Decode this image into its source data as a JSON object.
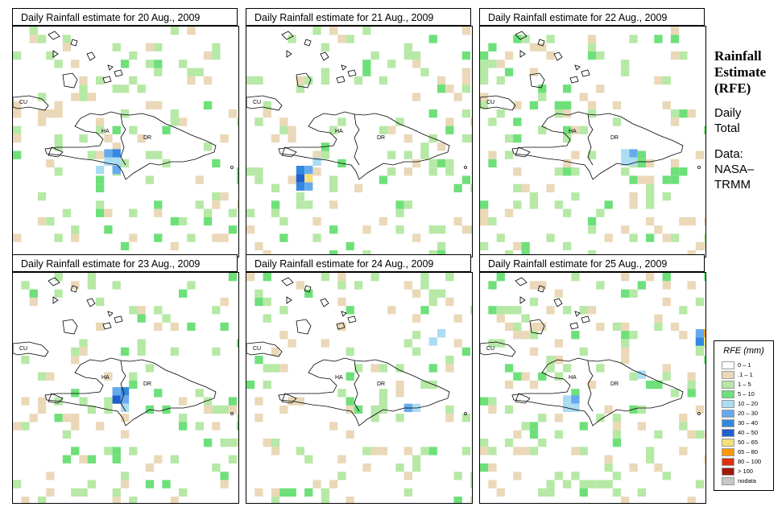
{
  "panels": [
    {
      "title": "Daily Rainfall estimate for  20 Aug., 2009",
      "seed": 11,
      "heavy": [
        [
          8,
          11,
          "#66aaee"
        ],
        [
          8,
          12,
          "#3388e0"
        ],
        [
          9,
          11,
          "#aadcf2"
        ],
        [
          9,
          12,
          "#aadcf2"
        ],
        [
          10,
          10,
          "#aadcf2"
        ],
        [
          10,
          12,
          "#66aaee"
        ]
      ]
    },
    {
      "title": "Daily Rainfall estimate for  21 Aug., 2009",
      "seed": 23,
      "heavy": [
        [
          10,
          6,
          "#3388e0"
        ],
        [
          10,
          7,
          "#66aaee"
        ],
        [
          11,
          6,
          "#1f5fd0"
        ],
        [
          11,
          7,
          "#f5e07a"
        ],
        [
          12,
          6,
          "#3388e0"
        ],
        [
          12,
          7,
          "#66aaee"
        ],
        [
          9,
          8,
          "#aadcf2"
        ]
      ]
    },
    {
      "title": "Daily Rainfall estimate for  22 Aug., 2009",
      "seed": 37,
      "heavy": [
        [
          8,
          17,
          "#aadcf2"
        ],
        [
          8,
          18,
          "#66aaee"
        ],
        [
          9,
          17,
          "#aadcf2"
        ],
        [
          9,
          18,
          "#aadcf2"
        ]
      ]
    },
    {
      "title": "Daily Rainfall estimate for  23 Aug., 2009",
      "seed": 41,
      "heavy": [
        [
          7,
          12,
          "#66aaee"
        ],
        [
          7,
          13,
          "#3388e0"
        ],
        [
          8,
          12,
          "#1f5fd0"
        ],
        [
          8,
          13,
          "#66aaee"
        ],
        [
          9,
          13,
          "#aadcf2"
        ]
      ]
    },
    {
      "title": "Daily Rainfall estimate for  24 Aug., 2009",
      "seed": 53,
      "heavy": [
        [
          0,
          23,
          "#aadcf2"
        ],
        [
          1,
          22,
          "#aadcf2"
        ],
        [
          9,
          19,
          "#66aaee"
        ],
        [
          9,
          20,
          "#aadcf2"
        ]
      ]
    },
    {
      "title": "Daily Rainfall estimate for  25 Aug., 2009",
      "seed": 67,
      "heavy": [
        [
          0,
          26,
          "#66aaee"
        ],
        [
          0,
          27,
          "#ff9900"
        ],
        [
          1,
          26,
          "#3388e0"
        ],
        [
          1,
          27,
          "#f5e07a"
        ],
        [
          5,
          19,
          "#aadcf2"
        ],
        [
          8,
          10,
          "#aadcf2"
        ],
        [
          8,
          11,
          "#66aaee"
        ],
        [
          9,
          10,
          "#aadcf2"
        ],
        [
          9,
          11,
          "#aadcf2"
        ]
      ]
    }
  ],
  "map_labels": {
    "cu": "CU",
    "ha": "HA",
    "dr": "DR"
  },
  "side": {
    "title_line1": "Rainfall",
    "title_line2": "Estimate",
    "title_line3": "(RFE)",
    "sub_line1": "Daily",
    "sub_line2": "Total",
    "data_line1": "Data:",
    "data_line2": "NASA–",
    "data_line3": "TRMM"
  },
  "legend": {
    "title": "RFE (mm)",
    "items": [
      {
        "label": "0 – 1",
        "color": "#ffffff"
      },
      {
        "label": ".1 – 1",
        "color": "#ead8b8"
      },
      {
        "label": "1 – 5",
        "color": "#b6e8a6"
      },
      {
        "label": "5 – 10",
        "color": "#6ee07a"
      },
      {
        "label": "10 – 20",
        "color": "#aadcf2"
      },
      {
        "label": "20 – 30",
        "color": "#66aaee"
      },
      {
        "label": "30 – 40",
        "color": "#3388e0"
      },
      {
        "label": "40 – 50",
        "color": "#1f5fd0"
      },
      {
        "label": "50 – 65",
        "color": "#f5e07a"
      },
      {
        "label": "65 – 80",
        "color": "#ff9900"
      },
      {
        "label": "80 – 100",
        "color": "#e03010"
      },
      {
        "label": "> 100",
        "color": "#a01808"
      },
      {
        "label": "nodata",
        "color": "#c8c8c8"
      }
    ]
  }
}
